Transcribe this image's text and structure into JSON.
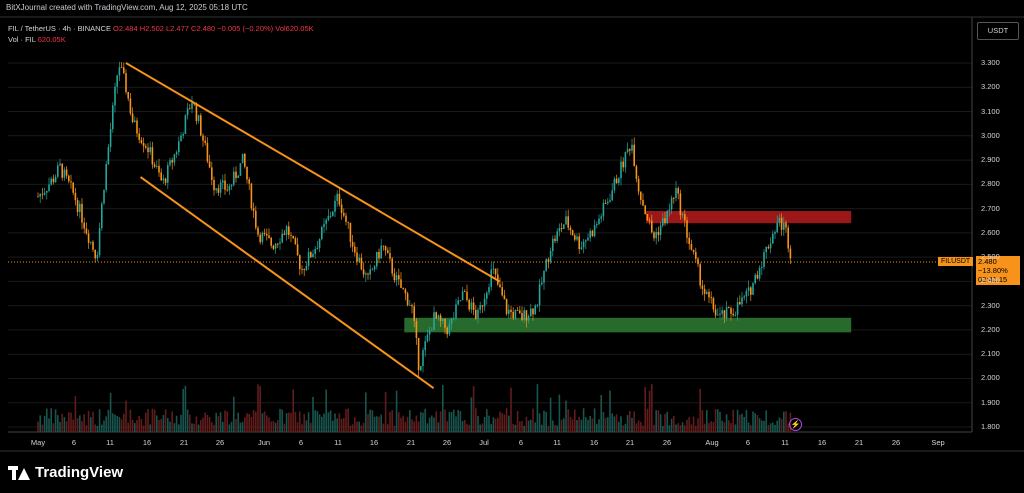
{
  "header": {
    "text": "BitXJournal created with TradingView.com, Aug 12, 2025 05:18 UTC"
  },
  "legend": {
    "symbol": "FIL / TetherUS · 4h · BINANCE",
    "ohlc": "O2.484  H2.502  L2.477  C2.480  −0.005 (−0.20%)  Vol620.05K",
    "volume_label": "Vol · FIL",
    "volume_value": "620.05K"
  },
  "currency": "USDT",
  "price_tag": {
    "symbol": "FILUSDT",
    "price": "2.480",
    "change": "−13.80%",
    "countdown": "02:41:15"
  },
  "footer": {
    "brand": "TradingView"
  },
  "colors": {
    "up": "#26a69a",
    "down": "#f7931a",
    "channel": "#f7931a",
    "resistance": "#b71c1c",
    "support": "#2e7d32",
    "background": "#000000"
  },
  "chart_data": {
    "type": "candlestick",
    "title": "FIL / TetherUS · 4h · BINANCE",
    "y_ticks": [
      "3.300",
      "3.200",
      "3.100",
      "3.000",
      "2.900",
      "2.800",
      "2.700",
      "2.600",
      "2.500",
      "2.400",
      "2.300",
      "2.200",
      "2.100",
      "2.000",
      "1.900",
      "1.800"
    ],
    "ylim": [
      1.78,
      3.44
    ],
    "x_ticks": [
      "May",
      "6",
      "11",
      "16",
      "21",
      "26",
      "Jun",
      "6",
      "11",
      "16",
      "21",
      "26",
      "Jul",
      "6",
      "11",
      "16",
      "21",
      "26",
      "Aug",
      "6",
      "11",
      "16",
      "21",
      "26",
      "Sep"
    ],
    "last_price": 2.48,
    "zones": [
      {
        "name": "resistance",
        "y_low": 2.64,
        "y_high": 2.69,
        "x_start": "2025-07-23",
        "x_end": "2025-08-20"
      },
      {
        "name": "support",
        "y_low": 2.19,
        "y_high": 2.25,
        "x_start": "2025-06-20",
        "x_end": "2025-08-20"
      }
    ],
    "channel_lines": [
      {
        "name": "upper",
        "from": {
          "date": "2025-05-13",
          "price": 3.3
        },
        "to": {
          "date": "2025-07-03",
          "price": 2.4
        }
      },
      {
        "name": "lower",
        "from": {
          "date": "2025-05-15",
          "price": 2.83
        },
        "to": {
          "date": "2025-06-24",
          "price": 1.96
        }
      }
    ],
    "price_path": [
      [
        "2025-05-01",
        2.75
      ],
      [
        "2025-05-03",
        2.82
      ],
      [
        "2025-05-04",
        2.87
      ],
      [
        "2025-05-06",
        2.75
      ],
      [
        "2025-05-08",
        2.58
      ],
      [
        "2025-05-09",
        2.5
      ],
      [
        "2025-05-10",
        2.8
      ],
      [
        "2025-05-11",
        3.05
      ],
      [
        "2025-05-12",
        3.3
      ],
      [
        "2025-05-13",
        3.2
      ],
      [
        "2025-05-14",
        3.05
      ],
      [
        "2025-05-16",
        2.95
      ],
      [
        "2025-05-18",
        2.8
      ],
      [
        "2025-05-20",
        2.95
      ],
      [
        "2025-05-22",
        3.15
      ],
      [
        "2025-05-23",
        3.05
      ],
      [
        "2025-05-25",
        2.8
      ],
      [
        "2025-05-27",
        2.78
      ],
      [
        "2025-05-29",
        2.9
      ],
      [
        "2025-05-31",
        2.6
      ],
      [
        "2025-06-02",
        2.55
      ],
      [
        "2025-06-04",
        2.62
      ],
      [
        "2025-06-06",
        2.45
      ],
      [
        "2025-06-08",
        2.55
      ],
      [
        "2025-06-11",
        2.75
      ],
      [
        "2025-06-13",
        2.55
      ],
      [
        "2025-06-15",
        2.4
      ],
      [
        "2025-06-17",
        2.55
      ],
      [
        "2025-06-19",
        2.4
      ],
      [
        "2025-06-21",
        2.3
      ],
      [
        "2025-06-22",
        2.05
      ],
      [
        "2025-06-24",
        2.25
      ],
      [
        "2025-06-26",
        2.2
      ],
      [
        "2025-06-28",
        2.35
      ],
      [
        "2025-06-30",
        2.25
      ],
      [
        "2025-07-02",
        2.45
      ],
      [
        "2025-07-04",
        2.28
      ],
      [
        "2025-07-06",
        2.25
      ],
      [
        "2025-07-08",
        2.3
      ],
      [
        "2025-07-10",
        2.55
      ],
      [
        "2025-07-12",
        2.65
      ],
      [
        "2025-07-14",
        2.55
      ],
      [
        "2025-07-16",
        2.62
      ],
      [
        "2025-07-18",
        2.75
      ],
      [
        "2025-07-20",
        2.9
      ],
      [
        "2025-07-21",
        2.98
      ],
      [
        "2025-07-22",
        2.78
      ],
      [
        "2025-07-24",
        2.58
      ],
      [
        "2025-07-26",
        2.68
      ],
      [
        "2025-07-27",
        2.78
      ],
      [
        "2025-07-29",
        2.55
      ],
      [
        "2025-07-31",
        2.35
      ],
      [
        "2025-08-02",
        2.25
      ],
      [
        "2025-08-04",
        2.28
      ],
      [
        "2025-08-06",
        2.35
      ],
      [
        "2025-08-08",
        2.5
      ],
      [
        "2025-08-10",
        2.65
      ],
      [
        "2025-08-11",
        2.62
      ],
      [
        "2025-08-12",
        2.48
      ]
    ]
  }
}
